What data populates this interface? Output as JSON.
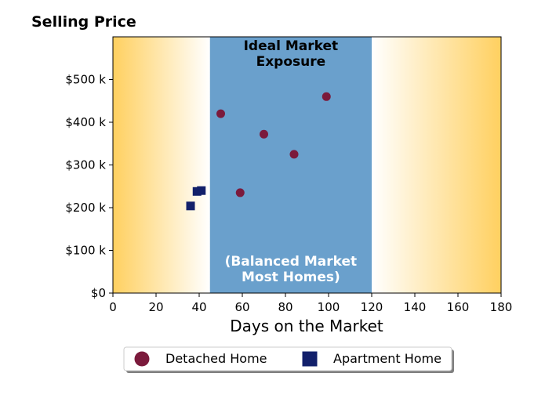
{
  "chart_data": {
    "type": "scatter",
    "title": "Selling Price",
    "xlabel": "Days on the Market",
    "ylabel": "",
    "xlim": [
      0,
      180
    ],
    "ylim": [
      0,
      600000
    ],
    "xticks": [
      0,
      20,
      40,
      60,
      80,
      100,
      120,
      140,
      160,
      180
    ],
    "xtick_labels": [
      "0",
      "20",
      "40",
      "60",
      "80",
      "100",
      "120",
      "140",
      "160",
      "180"
    ],
    "yticks": [
      0,
      100000,
      200000,
      300000,
      400000,
      500000
    ],
    "ytick_labels": [
      "$0",
      "$100 k",
      "$200 k",
      "$300 k",
      "$400 k",
      "$500 k"
    ],
    "grid": false,
    "legend_placement": "bottom-center",
    "shaded_region": {
      "x_range": [
        45,
        120
      ],
      "color": "#6aa0cc",
      "top_label": [
        "Ideal Market",
        "Exposure"
      ],
      "bottom_label": [
        "(Balanced Market",
        "Most Homes)"
      ]
    },
    "background_gradient": {
      "edge_color": "#ffd060",
      "center_color": "#ffffff"
    },
    "series": [
      {
        "name": "Detached Home",
        "marker": "circle",
        "color": "#7b1a3c",
        "points": [
          {
            "x": 50,
            "y": 420000
          },
          {
            "x": 59,
            "y": 235000
          },
          {
            "x": 70,
            "y": 372000
          },
          {
            "x": 84,
            "y": 325000
          },
          {
            "x": 99,
            "y": 460000
          }
        ]
      },
      {
        "name": "Apartment Home",
        "marker": "square",
        "color": "#12206b",
        "points": [
          {
            "x": 36,
            "y": 204000
          },
          {
            "x": 39,
            "y": 238000
          },
          {
            "x": 41,
            "y": 240000
          }
        ]
      }
    ]
  }
}
